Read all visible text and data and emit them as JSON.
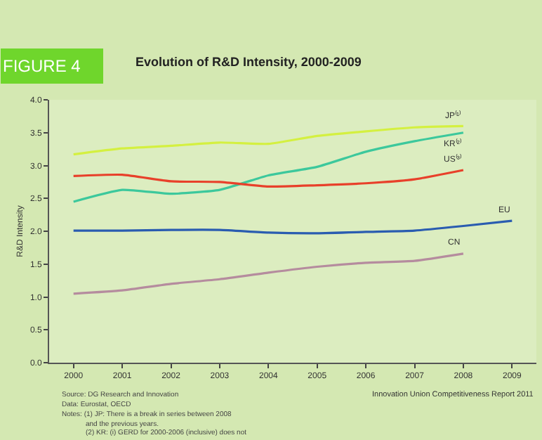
{
  "chart_data": {
    "type": "line",
    "title": "Evolution of R&D Intensity, 2000-2009",
    "ylabel": "R&D Intensity",
    "annotations": [
      "FIGURE 4",
      "Source: DG Research and Innovation",
      "Data: Eurostat, OECD",
      "Notes: (1) JP: There is a break in series between 2008",
      "and the previous years.",
      "(2) KR: (i) GERD for 2000-2006 (inclusive) does not",
      "Innovation Union Competitiveness Report 2011"
    ],
    "x": [
      2000,
      2001,
      2002,
      2003,
      2004,
      2005,
      2006,
      2007,
      2008,
      2009
    ],
    "series": [
      {
        "name": "JP⁽¹⁾",
        "color": "#d4f040",
        "values": [
          3.17,
          3.26,
          3.3,
          3.35,
          3.33,
          3.45,
          3.52,
          3.58,
          3.6,
          null
        ]
      },
      {
        "name": "KR⁽²⁾",
        "color": "#3cc89c",
        "values": [
          2.45,
          2.63,
          2.57,
          2.63,
          2.85,
          2.98,
          3.21,
          3.37,
          3.5,
          null
        ]
      },
      {
        "name": "US⁽³⁾",
        "color": "#e8402a",
        "values": [
          2.84,
          2.86,
          2.76,
          2.75,
          2.68,
          2.7,
          2.73,
          2.79,
          2.93,
          null
        ]
      },
      {
        "name": "EU",
        "color": "#2a5cb0",
        "values": [
          2.01,
          2.01,
          2.02,
          2.02,
          1.98,
          1.97,
          1.99,
          2.01,
          2.08,
          2.16
        ]
      },
      {
        "name": "CN",
        "color": "#b58c9e",
        "values": [
          1.05,
          1.1,
          1.2,
          1.27,
          1.37,
          1.46,
          1.52,
          1.55,
          1.66,
          null
        ]
      }
    ],
    "xlim": [
      1999.5,
      2009.5
    ],
    "xticks": [
      2000,
      2001,
      2002,
      2003,
      2004,
      2005,
      2006,
      2007,
      2008,
      2009
    ],
    "ylim": [
      0,
      4
    ],
    "yticks": [
      {
        "value": 0,
        "label": "0.0"
      },
      {
        "value": 0.5,
        "label": "0.5"
      },
      {
        "value": 1,
        "label": "1.0"
      },
      {
        "value": 1.5,
        "label": "1.5"
      },
      {
        "value": 2,
        "label": "2.0"
      },
      {
        "value": 2.5,
        "label": "2.5"
      },
      {
        "value": 3,
        "label": "3.0"
      },
      {
        "value": 3.5,
        "label": "3.5"
      },
      {
        "value": 4,
        "label": "4.0"
      }
    ],
    "legend": false,
    "grid": false,
    "marker": "none",
    "line_style": "solid"
  }
}
